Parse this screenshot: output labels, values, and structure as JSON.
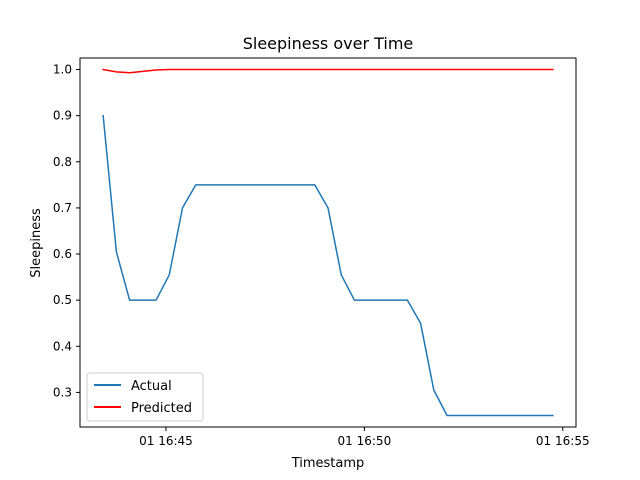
{
  "chart_data": {
    "type": "line",
    "title": "Sleepiness over Time",
    "xlabel": "Timestamp",
    "ylabel": "Sleepiness",
    "xlim": [
      "2000-01-01 16:42:50",
      "2000-01-01 16:55:20"
    ],
    "ylim": [
      0.225,
      1.025
    ],
    "xticks": [
      {
        "t": "2000-01-01 16:45:00",
        "label": "01 16:45"
      },
      {
        "t": "2000-01-01 16:50:00",
        "label": "01 16:50"
      },
      {
        "t": "2000-01-01 16:55:00",
        "label": "01 16:55"
      }
    ],
    "yticks": [
      {
        "v": 0.3,
        "label": "0.3"
      },
      {
        "v": 0.4,
        "label": "0.4"
      },
      {
        "v": 0.5,
        "label": "0.5"
      },
      {
        "v": 0.6,
        "label": "0.6"
      },
      {
        "v": 0.7,
        "label": "0.7"
      },
      {
        "v": 0.8,
        "label": "0.8"
      },
      {
        "v": 0.9,
        "label": "0.9"
      },
      {
        "v": 1.0,
        "label": "1.0"
      }
    ],
    "grid": false,
    "legend_position": "lower-left",
    "series": [
      {
        "name": "Actual",
        "color": "#1f77b4",
        "points": [
          [
            "2000-01-01 16:43:25",
            0.9
          ],
          [
            "2000-01-01 16:43:45",
            0.605
          ],
          [
            "2000-01-01 16:44:05",
            0.5
          ],
          [
            "2000-01-01 16:44:25",
            0.5
          ],
          [
            "2000-01-01 16:44:45",
            0.5
          ],
          [
            "2000-01-01 16:45:05",
            0.555
          ],
          [
            "2000-01-01 16:45:25",
            0.7
          ],
          [
            "2000-01-01 16:45:45",
            0.75
          ],
          [
            "2000-01-01 16:46:05",
            0.75
          ],
          [
            "2000-01-01 16:46:25",
            0.75
          ],
          [
            "2000-01-01 16:46:45",
            0.75
          ],
          [
            "2000-01-01 16:47:05",
            0.75
          ],
          [
            "2000-01-01 16:47:25",
            0.75
          ],
          [
            "2000-01-01 16:47:45",
            0.75
          ],
          [
            "2000-01-01 16:48:05",
            0.75
          ],
          [
            "2000-01-01 16:48:25",
            0.75
          ],
          [
            "2000-01-01 16:48:45",
            0.75
          ],
          [
            "2000-01-01 16:49:05",
            0.7
          ],
          [
            "2000-01-01 16:49:25",
            0.555
          ],
          [
            "2000-01-01 16:49:45",
            0.5
          ],
          [
            "2000-01-01 16:50:05",
            0.5
          ],
          [
            "2000-01-01 16:50:25",
            0.5
          ],
          [
            "2000-01-01 16:50:45",
            0.5
          ],
          [
            "2000-01-01 16:51:05",
            0.5
          ],
          [
            "2000-01-01 16:51:25",
            0.45
          ],
          [
            "2000-01-01 16:51:45",
            0.305
          ],
          [
            "2000-01-01 16:52:05",
            0.25
          ],
          [
            "2000-01-01 16:52:25",
            0.25
          ],
          [
            "2000-01-01 16:52:45",
            0.25
          ],
          [
            "2000-01-01 16:53:05",
            0.25
          ],
          [
            "2000-01-01 16:53:25",
            0.25
          ],
          [
            "2000-01-01 16:53:45",
            0.25
          ],
          [
            "2000-01-01 16:54:05",
            0.25
          ],
          [
            "2000-01-01 16:54:25",
            0.25
          ],
          [
            "2000-01-01 16:54:45",
            0.25
          ]
        ]
      },
      {
        "name": "Predicted",
        "color": "#ff0000",
        "points": [
          [
            "2000-01-01 16:43:25",
            1.0
          ],
          [
            "2000-01-01 16:43:45",
            0.995
          ],
          [
            "2000-01-01 16:44:05",
            0.993
          ],
          [
            "2000-01-01 16:44:25",
            0.996
          ],
          [
            "2000-01-01 16:44:45",
            0.999
          ],
          [
            "2000-01-01 16:45:05",
            1.0
          ],
          [
            "2000-01-01 16:45:25",
            1.0
          ],
          [
            "2000-01-01 16:46:05",
            1.0
          ],
          [
            "2000-01-01 16:47:05",
            1.0
          ],
          [
            "2000-01-01 16:48:05",
            1.0
          ],
          [
            "2000-01-01 16:49:05",
            1.0
          ],
          [
            "2000-01-01 16:50:05",
            1.0
          ],
          [
            "2000-01-01 16:51:05",
            1.0
          ],
          [
            "2000-01-01 16:52:05",
            1.0
          ],
          [
            "2000-01-01 16:53:05",
            1.0
          ],
          [
            "2000-01-01 16:54:05",
            1.0
          ],
          [
            "2000-01-01 16:54:45",
            1.0
          ]
        ]
      }
    ]
  }
}
